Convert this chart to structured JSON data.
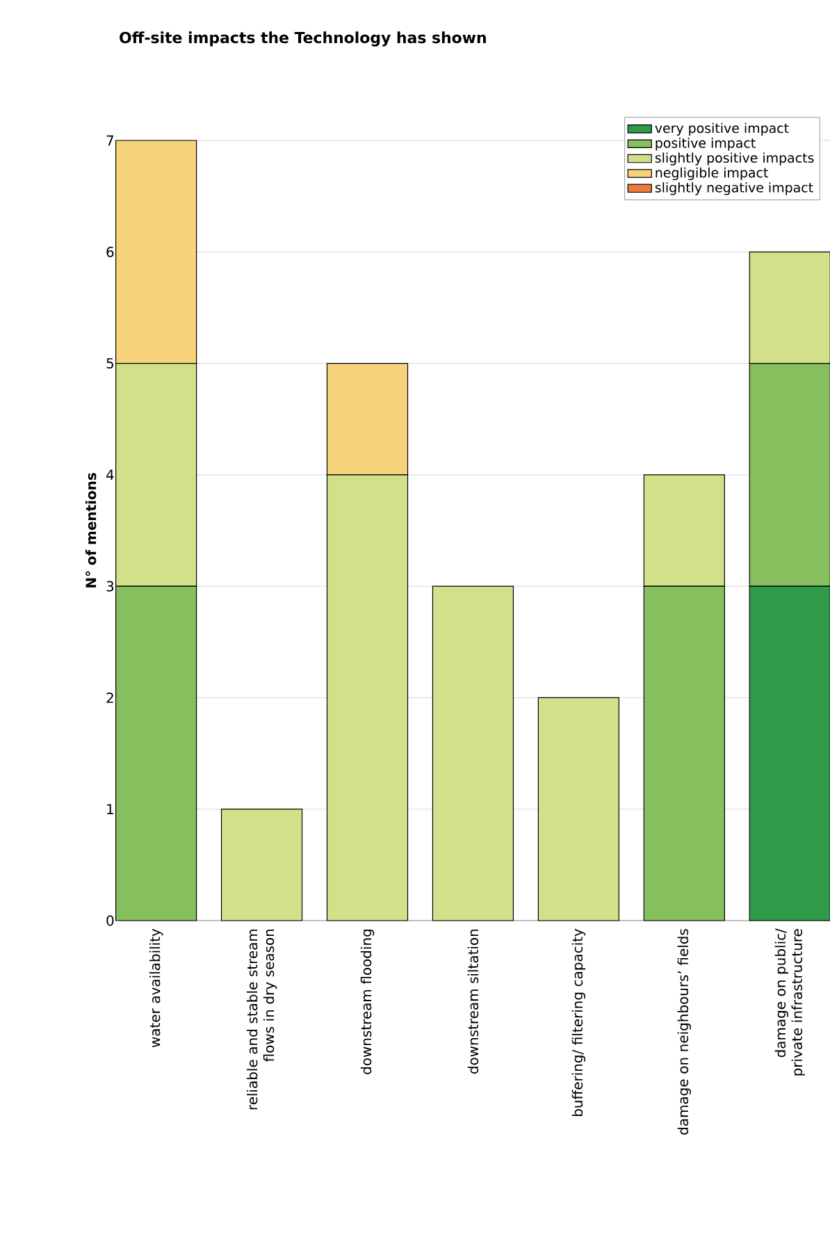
{
  "chart_data": {
    "type": "bar",
    "title": "Off-site impacts the Technology has shown",
    "ylabel": "N° of mentions",
    "categories": [
      "water availability",
      "reliable and stable stream flows in dry season",
      "downstream flooding",
      "downstream siltation",
      "buffering/ filtering capacity",
      "damage on neighbours’ fields",
      "damage on public/ private infrastructure"
    ],
    "stacked": true,
    "ylim": [
      0,
      7
    ],
    "yticks": [
      0,
      1,
      2,
      3,
      4,
      5,
      6,
      7
    ],
    "grid": "y",
    "legend": "top right",
    "series": [
      {
        "name": "very positive impact",
        "color": "#2e9a4a",
        "values": [
          0,
          0,
          0,
          0,
          0,
          0,
          3
        ]
      },
      {
        "name": "positive impact",
        "color": "#86bf5e",
        "values": [
          3,
          0,
          0,
          0,
          0,
          3,
          2
        ]
      },
      {
        "name": "slightly positive impacts",
        "color": "#d3e08a",
        "values": [
          2,
          1,
          4,
          3,
          2,
          1,
          1
        ]
      },
      {
        "name": "negligible impact",
        "color": "#f7d37b",
        "values": [
          2,
          0,
          1,
          0,
          0,
          0,
          0
        ]
      },
      {
        "name": "slightly negative impact",
        "color": "#ec7a3c",
        "values": [
          0,
          0,
          0,
          0,
          0,
          0,
          0
        ]
      }
    ]
  }
}
